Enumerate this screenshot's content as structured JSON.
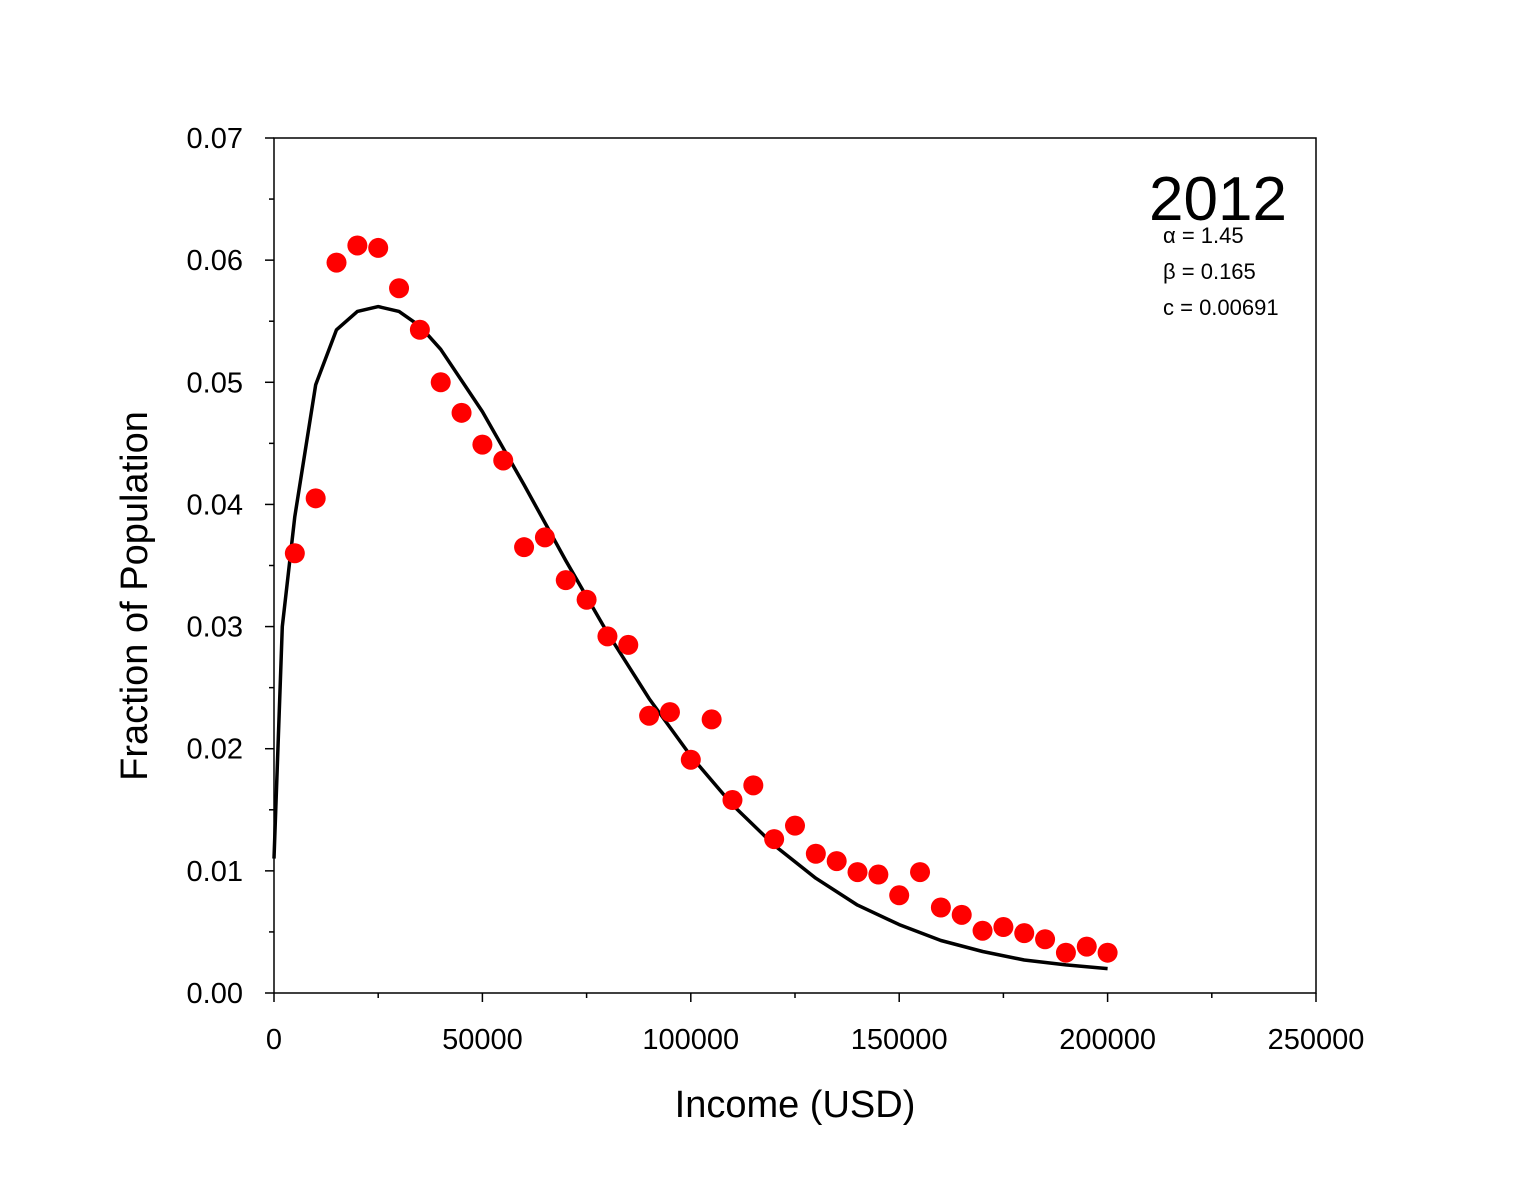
{
  "chart_data": {
    "type": "scatter",
    "title": "2012",
    "xlabel": "Income (USD)",
    "ylabel": "Fraction of Population",
    "xlim": [
      0,
      250000
    ],
    "ylim": [
      0,
      0.07
    ],
    "xticks": [
      "0",
      "50000",
      "100000",
      "150000",
      "200000",
      "250000"
    ],
    "yticks": [
      "0.00",
      "0.01",
      "0.02",
      "0.03",
      "0.04",
      "0.05",
      "0.06",
      "0.07"
    ],
    "grid": false,
    "annotations": [
      "α = 1.45",
      "β = 0.165",
      "c = 0.00691"
    ],
    "colors": {
      "points": "#ff0000",
      "fit": "#000000"
    },
    "series": [
      {
        "type": "scatter",
        "x": [
          5000,
          10000,
          15000,
          20000,
          25000,
          30000,
          35000,
          40000,
          45000,
          50000,
          55000,
          60000,
          65000,
          70000,
          75000,
          80000,
          85000,
          90000,
          95000,
          100000,
          105000,
          110000,
          115000,
          120000,
          125000,
          130000,
          135000,
          140000,
          145000,
          150000,
          155000,
          160000,
          165000,
          170000,
          175000,
          180000,
          185000,
          190000,
          195000,
          200000
        ],
        "y": [
          0.036,
          0.0405,
          0.0598,
          0.0612,
          0.061,
          0.0577,
          0.0543,
          0.05,
          0.0475,
          0.0449,
          0.0436,
          0.0365,
          0.0373,
          0.0338,
          0.0322,
          0.0292,
          0.0285,
          0.0227,
          0.023,
          0.0191,
          0.0224,
          0.0158,
          0.017,
          0.0126,
          0.0137,
          0.0114,
          0.0108,
          0.0099,
          0.0097,
          0.008,
          0.0099,
          0.007,
          0.0064,
          0.0051,
          0.0054,
          0.0049,
          0.0044,
          0.0033,
          0.0038,
          0.0033
        ]
      },
      {
        "type": "line",
        "x": [
          0,
          2000,
          5000,
          10000,
          15000,
          20000,
          25000,
          30000,
          35000,
          40000,
          50000,
          60000,
          70000,
          80000,
          90000,
          100000,
          110000,
          120000,
          130000,
          140000,
          150000,
          160000,
          170000,
          180000,
          190000,
          200000
        ],
        "y": [
          0.011,
          0.03,
          0.039,
          0.0498,
          0.0543,
          0.0558,
          0.0562,
          0.0558,
          0.0546,
          0.0527,
          0.0476,
          0.0416,
          0.0354,
          0.0295,
          0.0241,
          0.0194,
          0.0154,
          0.0121,
          0.0094,
          0.0072,
          0.0056,
          0.0043,
          0.0034,
          0.0027,
          0.0023,
          0.002
        ]
      }
    ]
  }
}
